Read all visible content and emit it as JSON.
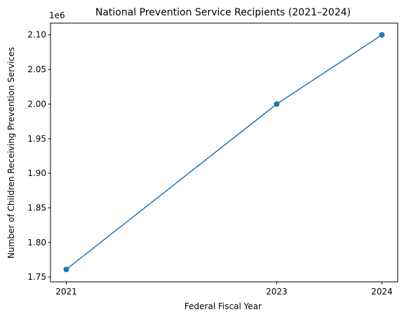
{
  "chart_data": {
    "type": "line",
    "title": "National Prevention Service Recipients (2021–2024)",
    "xlabel": "Federal Fiscal Year",
    "ylabel": "Number of Children Receiving Prevention Services",
    "y_offset_label": "1e6",
    "x": [
      2021,
      2023,
      2024
    ],
    "x_tick_labels": [
      "2021",
      "2023",
      "2024"
    ],
    "xlim": [
      2020.85,
      2024.15
    ],
    "series": [
      {
        "values": [
          1761000,
          2000000,
          2100000
        ],
        "color": "#1f77b4",
        "marker": "circle"
      }
    ],
    "yticks": [
      1750000,
      1800000,
      1850000,
      1900000,
      1950000,
      2000000,
      2050000,
      2100000
    ],
    "ytick_labels": [
      "1.75",
      "1.80",
      "1.85",
      "1.90",
      "1.95",
      "2.00",
      "2.05",
      "2.10"
    ],
    "ylim": [
      1743050,
      2116945
    ],
    "grid": false,
    "legend": "none"
  }
}
